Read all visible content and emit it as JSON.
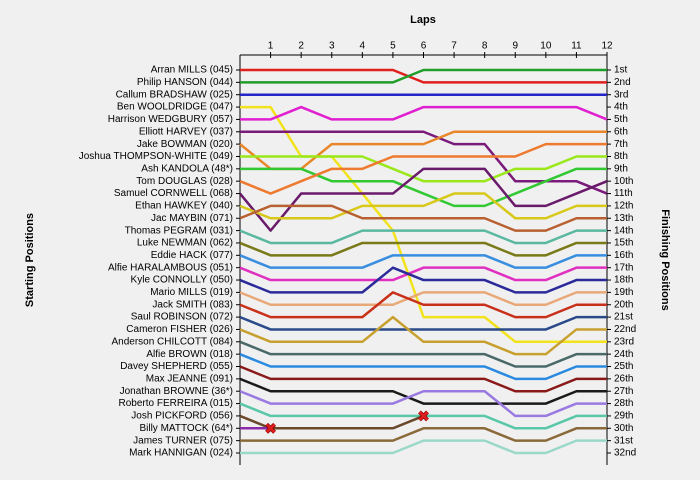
{
  "chart_data": {
    "type": "line",
    "title": "Laps",
    "y_axis_label": "Starting Positions",
    "y2_axis_label": "Finishing Positions",
    "x": [
      0,
      1,
      2,
      3,
      4,
      5,
      6,
      7,
      8,
      9,
      10,
      11,
      12
    ],
    "xlim": [
      0,
      12
    ],
    "xticks": [
      1,
      2,
      3,
      4,
      5,
      6,
      7,
      8,
      9,
      10,
      11,
      12
    ],
    "ylim": [
      1,
      32
    ],
    "inverted_y": true,
    "finishing_labels": [
      "1st",
      "2nd",
      "3rd",
      "4th",
      "5th",
      "6th",
      "7th",
      "8th",
      "9th",
      "10th",
      "11th",
      "12th",
      "13th",
      "14th",
      "15th",
      "16th",
      "17th",
      "18th",
      "19th",
      "20th",
      "21st",
      "22nd",
      "23rd",
      "24th",
      "25th",
      "26th",
      "27th",
      "28th",
      "29th",
      "30th",
      "31st",
      "32nd"
    ],
    "series": [
      {
        "name": "Arran MILLS (045)",
        "color": "#e0201c",
        "values": [
          1,
          1,
          1,
          1,
          1,
          1,
          2,
          2,
          2,
          2,
          2,
          2,
          2
        ]
      },
      {
        "name": "Philip HANSON (044)",
        "color": "#1f9e2a",
        "values": [
          2,
          2,
          2,
          2,
          2,
          2,
          1,
          1,
          1,
          1,
          1,
          1,
          1
        ]
      },
      {
        "name": "Callum BRADSHAW (025)",
        "color": "#2626c8",
        "values": [
          3,
          3,
          3,
          3,
          3,
          3,
          3,
          3,
          3,
          3,
          3,
          3,
          3
        ]
      },
      {
        "name": "Ben WOOLDRIDGE (047)",
        "color": "#f2e21c",
        "values": [
          4,
          4,
          8,
          8,
          11,
          14,
          21,
          21,
          21,
          23,
          23,
          23,
          23
        ]
      },
      {
        "name": "Harrison WEDGBURY (057)",
        "color": "#e020d0",
        "values": [
          5,
          5,
          4,
          5,
          5,
          5,
          4,
          4,
          4,
          4,
          4,
          4,
          5
        ]
      },
      {
        "name": "Elliott HARVEY (037)",
        "color": "#7a1a7a",
        "values": [
          6,
          6,
          6,
          6,
          6,
          6,
          6,
          7,
          7,
          10,
          10,
          10,
          11
        ]
      },
      {
        "name": "Jake BOWMAN (020)",
        "color": "#e8862a",
        "values": [
          7,
          9,
          9,
          7,
          7,
          7,
          7,
          6,
          6,
          6,
          6,
          6,
          6
        ]
      },
      {
        "name": "Joshua THOMPSON-WHITE (049)",
        "color": "#9ae81c",
        "values": [
          8,
          8,
          8,
          8,
          8,
          9,
          10,
          10,
          10,
          9,
          9,
          8,
          8
        ]
      },
      {
        "name": "Ash KANDOLA  (48*)",
        "color": "#32c832",
        "values": [
          9,
          9,
          9,
          10,
          10,
          10,
          11,
          12,
          12,
          11,
          10,
          9,
          9
        ]
      },
      {
        "name": "Tom DOUGLAS (028)",
        "color": "#ee7a30",
        "values": [
          10,
          11,
          10,
          9,
          9,
          8,
          8,
          8,
          8,
          8,
          7,
          7,
          7
        ]
      },
      {
        "name": "Samuel CORNWELL (068)",
        "color": "#6a1a6a",
        "values": [
          11,
          14,
          11,
          11,
          11,
          11,
          9,
          9,
          9,
          12,
          12,
          11,
          10
        ]
      },
      {
        "name": "Ethan HAWKEY (040)",
        "color": "#d8c81a",
        "values": [
          12,
          13,
          13,
          13,
          12,
          12,
          12,
          11,
          11,
          13,
          13,
          12,
          12
        ]
      },
      {
        "name": "Jac MAYBIN (071)",
        "color": "#b86030",
        "values": [
          13,
          12,
          12,
          12,
          13,
          13,
          13,
          13,
          13,
          14,
          14,
          13,
          13
        ]
      },
      {
        "name": "Thomas PEGRAM (031)",
        "color": "#5ab8a0",
        "values": [
          14,
          15,
          15,
          15,
          14,
          14,
          14,
          14,
          14,
          15,
          15,
          14,
          14
        ]
      },
      {
        "name": "Luke NEWMAN (062)",
        "color": "#7a7a1a",
        "values": [
          15,
          16,
          16,
          16,
          15,
          15,
          15,
          15,
          15,
          16,
          16,
          15,
          15
        ]
      },
      {
        "name": "Eddie HACK (077)",
        "color": "#3a8ee0",
        "values": [
          16,
          17,
          17,
          17,
          17,
          16,
          16,
          16,
          16,
          17,
          17,
          16,
          16
        ]
      },
      {
        "name": "Alfie HARALAMBOUS (051)",
        "color": "#e030c0",
        "values": [
          17,
          18,
          18,
          18,
          18,
          18,
          17,
          17,
          17,
          18,
          18,
          17,
          17
        ]
      },
      {
        "name": "Kyle CONNOLLY (050)",
        "color": "#2a2a9a",
        "values": [
          18,
          19,
          19,
          19,
          19,
          17,
          18,
          18,
          18,
          19,
          19,
          18,
          18
        ]
      },
      {
        "name": "Mario MILLS (019)",
        "color": "#e8a878",
        "values": [
          19,
          20,
          20,
          20,
          20,
          20,
          19,
          19,
          19,
          20,
          20,
          19,
          19
        ]
      },
      {
        "name": "Jack SMITH (083)",
        "color": "#c8301a",
        "values": [
          20,
          21,
          21,
          21,
          21,
          19,
          20,
          20,
          20,
          21,
          21,
          20,
          20
        ]
      },
      {
        "name": "Saul ROBINSON (072)",
        "color": "#2a4a8a",
        "values": [
          21,
          22,
          22,
          22,
          22,
          22,
          22,
          22,
          22,
          22,
          22,
          21,
          21
        ]
      },
      {
        "name": "Cameron FISHER (026)",
        "color": "#c8a030",
        "values": [
          22,
          23,
          23,
          23,
          23,
          21,
          23,
          23,
          23,
          24,
          24,
          22,
          22
        ]
      },
      {
        "name": "Anderson CHILCOTT (084)",
        "color": "#4a6a6a",
        "values": [
          23,
          24,
          24,
          24,
          24,
          24,
          24,
          24,
          24,
          25,
          25,
          24,
          24
        ]
      },
      {
        "name": "Alfie BROWN (018)",
        "color": "#2a8ae0",
        "values": [
          24,
          25,
          25,
          25,
          25,
          25,
          25,
          25,
          25,
          26,
          26,
          25,
          25
        ]
      },
      {
        "name": "Davey SHEPHERD (055)",
        "color": "#8a1a1a",
        "values": [
          25,
          26,
          26,
          26,
          26,
          26,
          26,
          26,
          26,
          27,
          27,
          26,
          26
        ]
      },
      {
        "name": "Max JEANNE (091)",
        "color": "#1a1a1a",
        "values": [
          26,
          27,
          27,
          27,
          27,
          27,
          28,
          28,
          28,
          28,
          28,
          27,
          27
        ]
      },
      {
        "name": "Jonathan BROWNE (36*)",
        "color": "#9a7ae0",
        "values": [
          27,
          28,
          28,
          28,
          28,
          28,
          27,
          27,
          27,
          29,
          29,
          28,
          28
        ]
      },
      {
        "name": "Roberto FERREIRA (015)",
        "color": "#5ac8a8",
        "values": [
          28,
          29,
          29,
          29,
          29,
          29,
          29,
          29,
          29,
          30,
          30,
          29,
          29
        ]
      },
      {
        "name": "Josh PICKFORD (056)",
        "color": "#6a4a2a",
        "retired": true,
        "values": [
          29,
          30,
          30,
          30,
          30,
          30,
          29,
          null,
          null,
          null,
          null,
          null,
          null
        ]
      },
      {
        "name": "Billy MATTOCK (64*)",
        "color": "#8a2aa8",
        "retired": true,
        "values": [
          30,
          30,
          null,
          null,
          null,
          null,
          null,
          null,
          null,
          null,
          null,
          null,
          null
        ]
      },
      {
        "name": "James TURNER (075)",
        "color": "#8a6a3a",
        "values": [
          31,
          31,
          31,
          31,
          31,
          31,
          30,
          30,
          30,
          31,
          31,
          30,
          30
        ]
      },
      {
        "name": "Mark HANNIGAN (024)",
        "color": "#9ad8c8",
        "values": [
          32,
          32,
          32,
          32,
          32,
          32,
          31,
          31,
          31,
          32,
          32,
          31,
          31
        ]
      }
    ]
  }
}
